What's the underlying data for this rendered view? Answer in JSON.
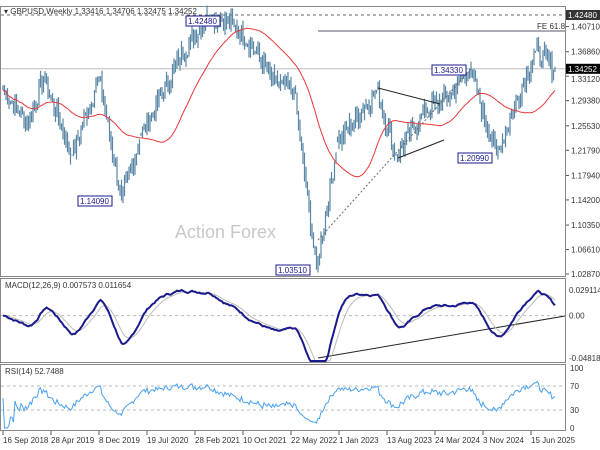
{
  "header": {
    "symbol": "GBPUSD,Weekly",
    "ohlc": "1.33416 1.34706 1.32475 1.34252"
  },
  "watermark": "Action Forex",
  "colors": {
    "bars": "#5b87a6",
    "ma": "#e8383a",
    "macd": "#1a1a8c",
    "signal": "#bbbbbb",
    "rsi": "#4aa0f0",
    "label_box": "#1a1a8c"
  },
  "chart_data": [
    {
      "type": "bar",
      "title": "GBPUSD,Weekly",
      "ylim": [
        1.0287,
        1.4248
      ],
      "yticks": [
        "1.42480",
        "1.40710",
        "1.36860",
        "1.33120",
        "1.29380",
        "1.25530",
        "1.21790",
        "1.17940",
        "1.14200",
        "1.10350",
        "1.06610",
        "1.02870"
      ],
      "current_price": "1.34252",
      "swing_points": [
        [
          "16 Sep 2018",
          1.31
        ],
        [
          "Jan 2019",
          1.26
        ],
        [
          "Mar 2019",
          1.33
        ],
        [
          "Aug 2019",
          1.21
        ],
        [
          "Dec 2019",
          1.33
        ],
        [
          "Mar 2020",
          1.1409
        ],
        [
          "Jun 2020",
          1.24
        ],
        [
          "Dec 2020",
          1.36
        ],
        [
          "Feb 2021",
          1.4248
        ],
        [
          "Jun 2021",
          1.41
        ],
        [
          "Sep 2021",
          1.37
        ],
        [
          "Dec 2021",
          1.32
        ],
        [
          "Mar 2022",
          1.31
        ],
        [
          "Sep 2022",
          1.0351
        ],
        [
          "Jan 2023",
          1.23
        ],
        [
          "Jul 2023",
          1.31
        ],
        [
          "Oct 2023",
          1.21
        ],
        [
          "Mar 2024",
          1.28
        ],
        [
          "Jul 2024",
          1.3
        ],
        [
          "Sep 2024",
          1.3433
        ],
        [
          "Jan 2025",
          1.2099
        ],
        [
          "Jul 2025",
          1.37
        ],
        [
          "Aug 2025",
          1.34252
        ]
      ],
      "annotations": [
        "1.42480",
        "1.14090",
        "1.03510",
        "1.34330",
        "1.20990",
        "FE 61.8"
      ]
    },
    {
      "type": "line",
      "title": "MACD(12,26,9) 0.007573 0.011654",
      "yticks": [
        "0.029114",
        "0.00",
        "-0.048189"
      ]
    },
    {
      "type": "line",
      "title": "RSI(14) 52.7488",
      "yticks": [
        "100",
        "70",
        "30",
        "0"
      ]
    }
  ],
  "xticks": [
    "16 Sep 2018",
    "28 Apr 2019",
    "8 Dec 2019",
    "19 Jul 2020",
    "28 Feb 2021",
    "10 Oct 2021",
    "22 May 2022",
    "1 Jan 2023",
    "13 Aug 2023",
    "24 Mar 2024",
    "3 Nov 2024",
    "15 Jun 2025"
  ]
}
